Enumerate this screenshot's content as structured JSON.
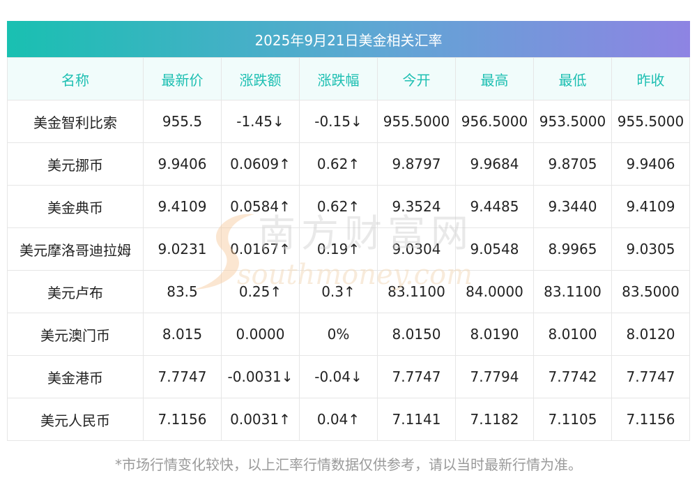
{
  "title": "2025年9月21日美金相关汇率",
  "headers": [
    "名称",
    "最新价",
    "涨跌额",
    "涨跌幅",
    "今开",
    "最高",
    "最低",
    "昨收"
  ],
  "rows": [
    {
      "name": "美金智利比索",
      "latest": "955.5",
      "change": "-1.45↓",
      "change_pct": "-0.15↓",
      "open": "955.5000",
      "high": "956.5000",
      "low": "953.5000",
      "prev_close": "955.5000",
      "trend": "down"
    },
    {
      "name": "美元挪币",
      "latest": "9.9406",
      "change": "0.0609↑",
      "change_pct": "0.62↑",
      "open": "9.8797",
      "high": "9.9684",
      "low": "9.8705",
      "prev_close": "9.9406",
      "trend": "up"
    },
    {
      "name": "美金典币",
      "latest": "9.4109",
      "change": "0.0584↑",
      "change_pct": "0.62↑",
      "open": "9.3524",
      "high": "9.4485",
      "low": "9.3440",
      "prev_close": "9.4109",
      "trend": "up"
    },
    {
      "name": "美元摩洛哥迪拉姆",
      "latest": "9.0231",
      "change": "0.0167↑",
      "change_pct": "0.19↑",
      "open": "9.0304",
      "high": "9.0548",
      "low": "8.9965",
      "prev_close": "9.0305",
      "trend": "up"
    },
    {
      "name": "美元卢布",
      "latest": "83.5",
      "change": "0.25↑",
      "change_pct": "0.3↑",
      "open": "83.1100",
      "high": "84.0000",
      "low": "83.1100",
      "prev_close": "83.5000",
      "trend": "up"
    },
    {
      "name": "美元澳门币",
      "latest": "8.015",
      "change": "0.0000",
      "change_pct": "0%",
      "open": "8.0150",
      "high": "8.0190",
      "low": "8.0100",
      "prev_close": "8.0120",
      "trend": "flat"
    },
    {
      "name": "美金港币",
      "latest": "7.7747",
      "change": "-0.0031↓",
      "change_pct": "-0.04↓",
      "open": "7.7747",
      "high": "7.7794",
      "low": "7.7742",
      "prev_close": "7.7747",
      "trend": "down"
    },
    {
      "name": "美元人民币",
      "latest": "7.1156",
      "change": "0.0031↑",
      "change_pct": "0.04↑",
      "open": "7.1141",
      "high": "7.1182",
      "low": "7.1105",
      "prev_close": "7.1156",
      "trend": "up"
    }
  ],
  "watermark": {
    "cn": "南方财富网",
    "en": "southmoney.com"
  },
  "footnote": "*市场行情变化较快，以上汇率行情数据仅供参考，请以当时最新行情为准。",
  "colors": {
    "up": "#f1172b",
    "down": "#138a1e",
    "header_text": "#1dbfb2",
    "header_bg": "#f1fcfb",
    "gradient_start": "#19c0b1",
    "gradient_end": "#8e84e3"
  }
}
